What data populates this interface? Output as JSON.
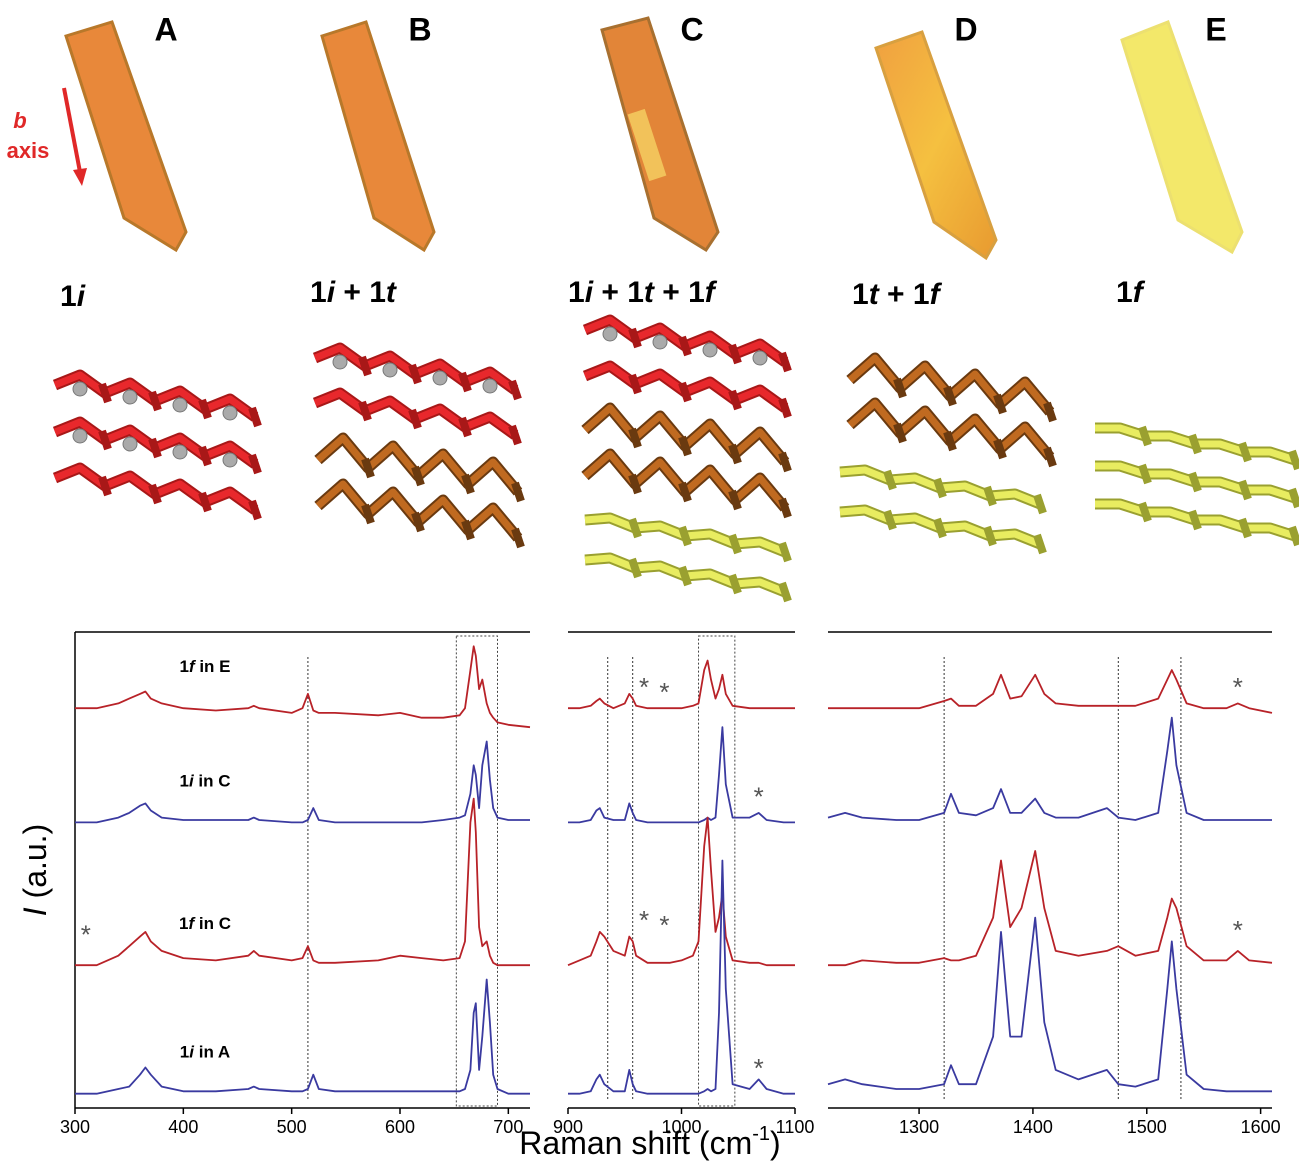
{
  "panels": [
    {
      "label": "A",
      "composition": "1i"
    },
    {
      "label": "B",
      "composition": "1i + 1t"
    },
    {
      "label": "C",
      "composition": "1i + 1t + 1f"
    },
    {
      "label": "D",
      "composition": "1t + 1f"
    },
    {
      "label": "E",
      "composition": "1f"
    }
  ],
  "axis_label": {
    "letter": "b",
    "word": "axis"
  },
  "y_label": "I (a.u.)",
  "x_label": "Raman shift (cm-1)",
  "chart_data": [
    {
      "type": "line",
      "xlim": [
        300,
        720
      ],
      "ylim": [
        0,
        100
      ],
      "xticks": [
        300,
        400,
        500,
        600,
        700
      ],
      "x": [
        300,
        320,
        340,
        350,
        360,
        365,
        370,
        380,
        400,
        430,
        460,
        465,
        470,
        500,
        510,
        515,
        520,
        525,
        540,
        580,
        600,
        620,
        640,
        655,
        660,
        665,
        668,
        670,
        673,
        676,
        680,
        683,
        686,
        690,
        700,
        720
      ],
      "ref_lines": [
        515
      ],
      "boxes": [
        [
          652,
          690
        ]
      ],
      "series": [
        {
          "name": "1f in E",
          "color": "#b82228",
          "values": [
            84,
            84,
            85,
            86,
            87,
            87.5,
            86,
            85,
            84,
            83.5,
            84,
            84.5,
            84,
            83,
            84,
            87,
            83.5,
            83,
            83,
            82.5,
            83,
            82,
            82,
            82.5,
            84,
            92,
            97,
            95,
            88,
            90,
            85,
            83,
            82,
            81,
            80.5,
            80
          ]
        },
        {
          "name": "1i in C",
          "color": "#3a3aa0",
          "values": [
            60,
            60,
            61,
            62,
            63.5,
            64,
            62.5,
            61,
            60.5,
            60.5,
            60.5,
            61,
            60.5,
            60,
            60,
            60.5,
            63,
            60.5,
            60,
            60,
            60,
            60,
            60.5,
            61,
            61.5,
            66,
            72,
            70,
            63,
            72,
            77,
            69,
            63,
            61,
            60.5,
            60.5
          ]
        },
        {
          "name": "1f in C",
          "color": "#b82228",
          "values": [
            30,
            30,
            32,
            34,
            36,
            37,
            35,
            33,
            31.5,
            31,
            32,
            33,
            32,
            31,
            31.5,
            34,
            31,
            30.5,
            30.5,
            31,
            32,
            31.5,
            31,
            31.5,
            35,
            60,
            65,
            58,
            38,
            34,
            35,
            32,
            30.5,
            30,
            30,
            30
          ]
        },
        {
          "name": "1i in A",
          "color": "#3a3aa0",
          "values": [
            3,
            3,
            4,
            4.5,
            7,
            8.5,
            7,
            4.5,
            3.5,
            3.5,
            4,
            4.5,
            4,
            3.5,
            3.5,
            4,
            7,
            4,
            3.5,
            3.5,
            3.5,
            3.5,
            3.5,
            3.5,
            4,
            8,
            20,
            22,
            8,
            15,
            27,
            18,
            7,
            4,
            3,
            3
          ]
        }
      ],
      "annotations": [
        {
          "text": "*",
          "x": 310,
          "y": 36
        }
      ]
    },
    {
      "type": "line",
      "xlim": [
        900,
        1100
      ],
      "ylim": [
        0,
        100
      ],
      "xticks": [
        900,
        1000,
        1100
      ],
      "x": [
        900,
        910,
        920,
        925,
        928,
        932,
        940,
        950,
        954,
        957,
        960,
        970,
        990,
        1000,
        1010,
        1015,
        1020,
        1023,
        1026,
        1030,
        1033,
        1036,
        1039,
        1045,
        1060,
        1068,
        1075,
        1090,
        1100
      ],
      "ref_lines": [
        935,
        957
      ],
      "boxes": [
        [
          1015,
          1047
        ]
      ],
      "series": [
        {
          "color": "#b82228",
          "values": [
            84,
            84,
            84.5,
            85.5,
            86,
            85,
            84,
            85,
            87,
            86,
            84.5,
            84,
            84,
            84,
            84.5,
            85,
            92,
            94,
            90,
            86,
            88,
            91,
            87,
            84.5,
            84,
            84,
            84,
            84,
            84
          ]
        },
        {
          "color": "#3a3aa0",
          "values": [
            60,
            60,
            60.5,
            62.5,
            63,
            61,
            60.5,
            60.5,
            64,
            62,
            60.5,
            60,
            60,
            60,
            60,
            60,
            60.5,
            61,
            60.5,
            61,
            70,
            80,
            68,
            61,
            61,
            62,
            60.5,
            60,
            60
          ]
        },
        {
          "color": "#b82228",
          "values": [
            30,
            31,
            32,
            35,
            37,
            36,
            33,
            32,
            36,
            35,
            32,
            30.5,
            30.5,
            31,
            32,
            35,
            55,
            61,
            50,
            37,
            40,
            45,
            36,
            31,
            30.5,
            30.5,
            30,
            30,
            30
          ]
        },
        {
          "color": "#3a3aa0",
          "values": [
            3,
            3,
            3.5,
            6,
            7,
            5,
            3.5,
            3.5,
            8,
            5,
            3.5,
            3,
            3,
            3,
            3,
            3,
            3.5,
            4,
            3.5,
            4,
            20,
            52,
            25,
            5,
            4,
            6,
            4,
            3,
            3
          ]
        }
      ],
      "annotations": [
        {
          "text": "*",
          "x": 967,
          "y": 88
        },
        {
          "text": "*",
          "x": 985,
          "y": 87
        },
        {
          "text": "*",
          "x": 1068,
          "y": 65
        },
        {
          "text": "*",
          "x": 967,
          "y": 39
        },
        {
          "text": "*",
          "x": 985,
          "y": 38
        },
        {
          "text": "*",
          "x": 1068,
          "y": 8
        }
      ]
    },
    {
      "type": "line",
      "xlim": [
        1220,
        1610
      ],
      "ylim": [
        0,
        100
      ],
      "xticks": [
        1300,
        1400,
        1500,
        1600
      ],
      "x": [
        1220,
        1235,
        1250,
        1280,
        1300,
        1322,
        1328,
        1335,
        1350,
        1365,
        1372,
        1380,
        1390,
        1402,
        1410,
        1420,
        1440,
        1465,
        1475,
        1490,
        1510,
        1518,
        1522,
        1526,
        1535,
        1550,
        1570,
        1580,
        1590,
        1610
      ],
      "ref_lines": [
        1322,
        1475,
        1530
      ],
      "boxes": [],
      "series": [
        {
          "color": "#b82228",
          "values": [
            84,
            84,
            84,
            84,
            84,
            85.5,
            86,
            84.5,
            84.5,
            87,
            91,
            86,
            86.5,
            91,
            87,
            85,
            84.5,
            84.5,
            84.5,
            84.5,
            86,
            90,
            92,
            90,
            85,
            84,
            84,
            85,
            84,
            83
          ]
        },
        {
          "color": "#3a3aa0",
          "values": [
            61,
            62,
            61,
            60.5,
            60.5,
            62,
            66,
            62,
            61.5,
            63,
            67,
            62,
            62,
            65,
            62,
            61,
            61,
            63,
            61,
            60.5,
            62,
            75,
            82,
            72,
            62,
            60.5,
            60.5,
            60.5,
            60.5,
            60.5
          ]
        },
        {
          "color": "#b82228",
          "values": [
            30,
            30,
            31,
            30.5,
            30.5,
            31.5,
            31,
            31,
            32,
            40,
            52,
            38,
            42,
            54,
            42,
            33,
            32,
            33,
            34,
            32,
            33,
            40,
            44,
            42,
            34,
            31,
            31,
            33,
            31,
            30.5
          ]
        },
        {
          "color": "#3a3aa0",
          "values": [
            5,
            6,
            5,
            4,
            4,
            5,
            9,
            5,
            5,
            15,
            37,
            15,
            15,
            40,
            18,
            8,
            6,
            8,
            5,
            4.5,
            6,
            25,
            35,
            25,
            7,
            4,
            3.5,
            3.5,
            3.5,
            3.5
          ]
        }
      ],
      "annotations": [
        {
          "text": "*",
          "x": 1580,
          "y": 88
        },
        {
          "text": "*",
          "x": 1580,
          "y": 37
        }
      ]
    }
  ]
}
